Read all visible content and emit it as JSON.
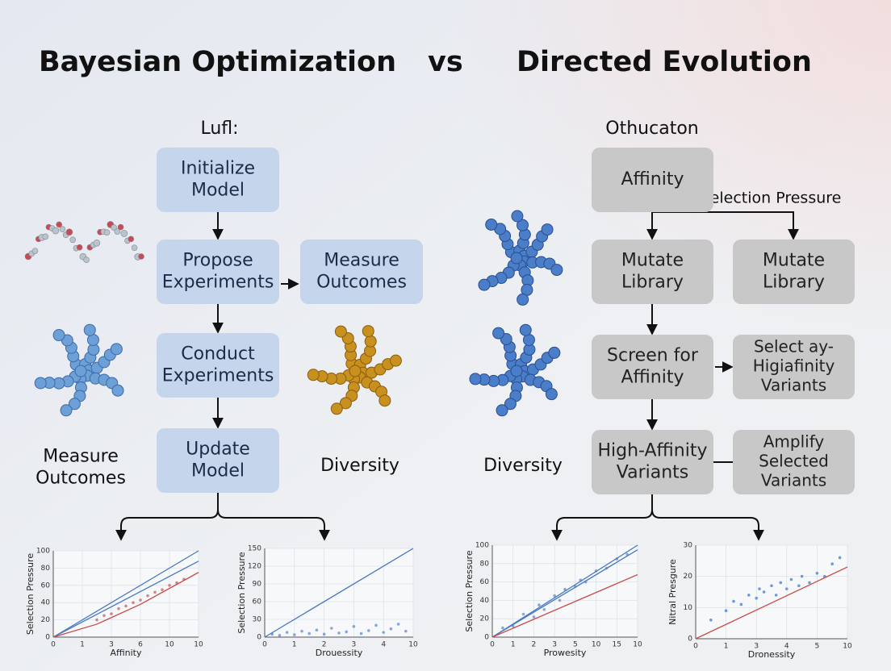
{
  "title": {
    "left": "Bayesian Optimization",
    "vs": "vs",
    "right": "Directed Evolution"
  },
  "left": {
    "heading": "Lufl:",
    "nodes": [
      {
        "lines": [
          "Initialize",
          "Model"
        ]
      },
      {
        "lines": [
          "Propose",
          "Experiments"
        ]
      },
      {
        "lines": [
          "Measure",
          "Outcomes"
        ]
      },
      {
        "lines": [
          "Conduct",
          "Experiments"
        ]
      },
      {
        "lines": [
          "Update",
          "Model"
        ]
      }
    ],
    "labels": [
      [
        "Measure",
        "Outcomes"
      ],
      [
        "Diversity"
      ]
    ]
  },
  "right": {
    "heading": "Othucaton",
    "edge_label": "Selection Pressure",
    "nodes": [
      {
        "lines": [
          "Affinity"
        ]
      },
      {
        "lines": [
          "Mutate",
          "Library"
        ]
      },
      {
        "lines": [
          "Mutate",
          "Library"
        ]
      },
      {
        "lines": [
          "Screen for",
          "Affinity"
        ]
      },
      {
        "lines": [
          "Select ay-",
          "Higiafinity",
          "Variants"
        ]
      },
      {
        "lines": [
          "High-Affinity",
          "Variants"
        ]
      },
      {
        "lines": [
          "Amplify",
          "Selected",
          "Variants"
        ]
      }
    ],
    "labels": [
      [
        "Diversity"
      ]
    ]
  },
  "charts": [
    {
      "x_label": "Affinity",
      "y_label": "Selection Pressure",
      "xlim": [
        0,
        10
      ],
      "ylim": [
        0,
        100
      ],
      "xticks": [
        0,
        {
          "value": 2,
          "label": "1"
        },
        {
          "value": 4,
          "label": "3"
        },
        6,
        {
          "value": 8,
          "label": "10"
        },
        10
      ],
      "yticks": [
        0,
        20,
        40,
        60,
        80,
        100
      ],
      "lines": [
        {
          "color": "#4a78c0",
          "x": [
            0,
            10
          ],
          "y": [
            0,
            100
          ]
        },
        {
          "color": "#4a78c0",
          "x": [
            0,
            10
          ],
          "y": [
            0,
            88
          ]
        },
        {
          "color": "#c84a4a",
          "x": [
            0,
            3,
            6,
            10
          ],
          "y": [
            0,
            15,
            38,
            75
          ]
        }
      ],
      "scatter": {
        "color": "#c86a6a",
        "x": [
          3,
          3.5,
          4,
          4.5,
          5,
          5.5,
          6,
          6.5,
          7,
          7.5,
          8,
          8.5,
          9
        ],
        "y": [
          20,
          25,
          27,
          33,
          36,
          40,
          43,
          48,
          52,
          55,
          60,
          63,
          67
        ]
      }
    },
    {
      "x_label": "Drouessity",
      "y_label": "Selection Pressure",
      "xlim": [
        0,
        10
      ],
      "ylim": [
        0,
        150
      ],
      "xticks": [
        0,
        {
          "value": 2,
          "label": "1"
        },
        {
          "value": 4,
          "label": "2"
        },
        {
          "value": 6,
          "label": "3"
        },
        {
          "value": 8,
          "label": "4"
        },
        10
      ],
      "yticks": [
        0,
        30,
        60,
        90,
        120,
        150
      ],
      "lines": [
        {
          "color": "#4a78c0",
          "x": [
            0,
            10
          ],
          "y": [
            0,
            150
          ]
        }
      ],
      "scatter": {
        "color": "#6a92d0",
        "x": [
          0.5,
          1,
          1.5,
          2,
          2.5,
          3,
          3.5,
          4,
          4.5,
          5,
          5.5,
          6,
          6.5,
          7,
          7.5,
          8,
          8.5,
          9,
          9.5
        ],
        "y": [
          5,
          3,
          8,
          4,
          10,
          6,
          12,
          5,
          15,
          7,
          9,
          18,
          6,
          11,
          20,
          8,
          14,
          22,
          10
        ]
      }
    },
    {
      "x_label": "Prowesity",
      "y_label": "Selection Pressure",
      "xlim": [
        0,
        14
      ],
      "ylim": [
        0,
        100
      ],
      "xticks": [
        0,
        {
          "value": 2,
          "label": "1"
        },
        {
          "value": 4,
          "label": "2"
        },
        {
          "value": 6,
          "label": "3"
        },
        {
          "value": 8,
          "label": "5"
        },
        10,
        {
          "value": 12,
          "label": "15"
        },
        {
          "value": 14,
          "label": "10"
        }
      ],
      "yticks": [
        0,
        20,
        40,
        60,
        80,
        100
      ],
      "lines": [
        {
          "color": "#4a78c0",
          "x": [
            0,
            14
          ],
          "y": [
            0,
            100
          ]
        },
        {
          "color": "#4a78c0",
          "x": [
            0,
            14
          ],
          "y": [
            0,
            95
          ]
        },
        {
          "color": "#c84a4a",
          "x": [
            0,
            14
          ],
          "y": [
            0,
            68
          ]
        }
      ],
      "scatter": {
        "color": "#6a92d0",
        "x": [
          1,
          2,
          3,
          4,
          4.5,
          5,
          6,
          6.5,
          7,
          8,
          8.5,
          9,
          10,
          11,
          12,
          13
        ],
        "y": [
          10,
          12,
          25,
          22,
          35,
          30,
          45,
          40,
          52,
          55,
          62,
          60,
          72,
          75,
          85,
          90
        ]
      }
    },
    {
      "x_label": "Dronessity",
      "y_label": "Nitral Presgure",
      "xlim": [
        0,
        10
      ],
      "ylim": [
        0,
        30
      ],
      "xticks": [
        0,
        {
          "value": 2,
          "label": "1"
        },
        {
          "value": 4,
          "label": "3"
        },
        {
          "value": 6,
          "label": "4"
        },
        {
          "value": 8,
          "label": "5"
        },
        10
      ],
      "yticks": [
        0,
        10,
        20,
        30
      ],
      "lines": [
        {
          "color": "#c84a4a",
          "x": [
            0,
            10
          ],
          "y": [
            0,
            23
          ]
        }
      ],
      "scatter": {
        "color": "#4a82d0",
        "x": [
          1,
          2,
          2.5,
          3,
          3.5,
          4,
          4.2,
          4.5,
          5,
          5.3,
          5.6,
          6,
          6.3,
          6.8,
          7,
          7.5,
          8,
          8.5,
          9,
          9.5
        ],
        "y": [
          6,
          9,
          12,
          11,
          14,
          13,
          16,
          15,
          17,
          14,
          18,
          16,
          19,
          17,
          20,
          18,
          21,
          20,
          24,
          26
        ]
      }
    }
  ]
}
